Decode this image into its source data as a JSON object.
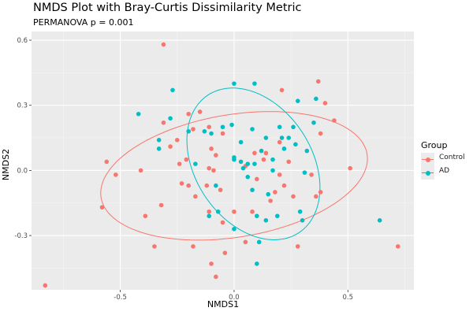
{
  "chart_data": {
    "type": "scatter",
    "title": "NMDS Plot with Bray-Curtis Dissimilarity Metric",
    "subtitle": "PERMANOVA p = 0.001",
    "xlabel": "NMDS1",
    "ylabel": "NMDS2",
    "xlim": [
      -0.89,
      0.79
    ],
    "ylim": [
      -0.55,
      0.64
    ],
    "x_ticks": [
      -0.5,
      0.0,
      0.5
    ],
    "x_tick_labels": [
      "-0.5",
      "0.0",
      "0.5"
    ],
    "y_ticks": [
      -0.3,
      0.0,
      0.3,
      0.6
    ],
    "y_tick_labels": [
      "-0.3",
      "0.0",
      "0.3",
      "0.6"
    ],
    "grid": true,
    "legend": {
      "title": "Group",
      "position": "right"
    },
    "series": [
      {
        "name": "Control",
        "color": "#F8766D",
        "ellipse": {
          "cx": 0.0,
          "cy": -0.025,
          "rx": 0.593,
          "ry": 0.282,
          "angle_deg": 10
        },
        "points": [
          [
            -0.31,
            0.58
          ],
          [
            -0.83,
            -0.53
          ],
          [
            -0.56,
            0.04
          ],
          [
            -0.52,
            -0.02
          ],
          [
            -0.58,
            -0.17
          ],
          [
            -0.39,
            -0.21
          ],
          [
            -0.32,
            -0.16
          ],
          [
            -0.35,
            -0.35
          ],
          [
            -0.31,
            0.22
          ],
          [
            -0.25,
            0.14
          ],
          [
            -0.2,
            0.26
          ],
          [
            -0.18,
            0.19
          ],
          [
            -0.15,
            0.27
          ],
          [
            -0.11,
            0.2
          ],
          [
            -0.05,
            0.17
          ],
          [
            -0.1,
            0.1
          ],
          [
            -0.08,
            0.07
          ],
          [
            -0.21,
            0.05
          ],
          [
            -0.28,
            0.11
          ],
          [
            -0.24,
            0.03
          ],
          [
            -0.23,
            -0.06
          ],
          [
            -0.2,
            -0.07
          ],
          [
            -0.17,
            -0.12
          ],
          [
            -0.12,
            -0.07
          ],
          [
            -0.11,
            0.01
          ],
          [
            -0.06,
            -0.09
          ],
          [
            -0.18,
            -0.35
          ],
          [
            -0.11,
            -0.19
          ],
          [
            -0.05,
            -0.24
          ],
          [
            -0.04,
            -0.38
          ],
          [
            -0.1,
            -0.43
          ],
          [
            -0.08,
            -0.49
          ],
          [
            0.0,
            -0.19
          ],
          [
            0.05,
            -0.33
          ],
          [
            0.08,
            -0.19
          ],
          [
            0.09,
            0.08
          ],
          [
            0.1,
            -0.04
          ],
          [
            0.14,
            0.08
          ],
          [
            0.16,
            -0.14
          ],
          [
            0.18,
            -0.1
          ],
          [
            0.2,
            0.13
          ],
          [
            0.21,
            0.37
          ],
          [
            0.2,
            -0.02
          ],
          [
            0.22,
            -0.07
          ],
          [
            0.24,
            0.04
          ],
          [
            0.26,
            -0.12
          ],
          [
            0.28,
            -0.35
          ],
          [
            0.34,
            -0.02
          ],
          [
            0.36,
            -0.12
          ],
          [
            0.37,
            0.41
          ],
          [
            0.38,
            0.17
          ],
          [
            0.38,
            -0.1
          ],
          [
            0.4,
            0.31
          ],
          [
            0.44,
            0.23
          ],
          [
            0.51,
            0.01
          ],
          [
            0.72,
            -0.35
          ],
          [
            -0.41,
            0.0
          ],
          [
            -0.09,
            0.0
          ],
          [
            0.05,
            0.02
          ],
          [
            0.13,
            0.05
          ]
        ]
      },
      {
        "name": "AD",
        "color": "#00BFC4",
        "ellipse": {
          "cx": 0.085,
          "cy": 0.03,
          "rx": 0.375,
          "ry": 0.259,
          "angle_deg": -60
        },
        "points": [
          [
            -0.42,
            0.26
          ],
          [
            -0.33,
            0.14
          ],
          [
            -0.33,
            0.1
          ],
          [
            -0.27,
            0.37
          ],
          [
            -0.2,
            0.18
          ],
          [
            -0.17,
            0.03
          ],
          [
            -0.13,
            0.18
          ],
          [
            -0.1,
            0.17
          ],
          [
            -0.11,
            -0.21
          ],
          [
            -0.08,
            -0.07
          ],
          [
            -0.07,
            -0.19
          ],
          [
            -0.01,
            0.21
          ],
          [
            0.0,
            0.06
          ],
          [
            0.0,
            0.05
          ],
          [
            0.03,
            0.13
          ],
          [
            0.04,
            0.01
          ],
          [
            0.06,
            -0.03
          ],
          [
            0.08,
            -0.09
          ],
          [
            0.06,
            0.03
          ],
          [
            0.08,
            0.19
          ],
          [
            0.1,
            -0.21
          ],
          [
            0.12,
            0.09
          ],
          [
            0.14,
            0.15
          ],
          [
            0.15,
            -0.11
          ],
          [
            0.14,
            -0.23
          ],
          [
            0.17,
            0.05
          ],
          [
            0.17,
            0.0
          ],
          [
            0.19,
            -0.21
          ],
          [
            0.2,
            0.2
          ],
          [
            0.21,
            0.15
          ],
          [
            0.22,
            0.1
          ],
          [
            0.24,
            0.15
          ],
          [
            0.26,
            0.2
          ],
          [
            0.27,
            0.12
          ],
          [
            0.28,
            0.32
          ],
          [
            0.29,
            -0.19
          ],
          [
            0.3,
            -0.23
          ],
          [
            0.31,
            -0.01
          ],
          [
            0.32,
            0.09
          ],
          [
            0.36,
            0.33
          ],
          [
            0.35,
            0.22
          ],
          [
            0.0,
            -0.27
          ],
          [
            0.11,
            -0.33
          ],
          [
            -0.28,
            0.24
          ],
          [
            0.09,
            0.03
          ],
          [
            0.03,
            0.04
          ],
          [
            0.0,
            0.4
          ],
          [
            0.09,
            0.4
          ],
          [
            0.64,
            -0.23
          ],
          [
            0.1,
            -0.43
          ],
          [
            -0.05,
            0.2
          ]
        ]
      }
    ]
  }
}
